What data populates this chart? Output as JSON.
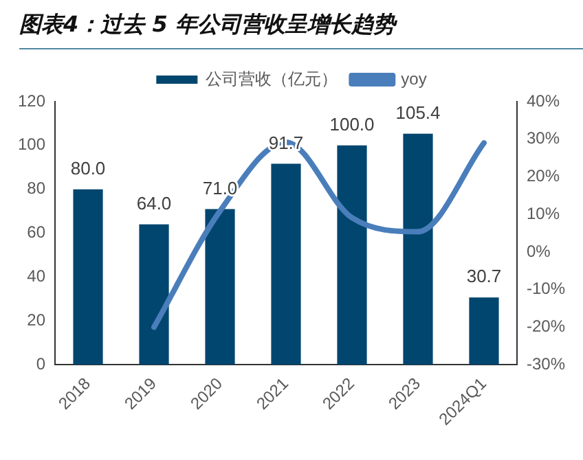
{
  "chart_data": {
    "type": "bar",
    "title": "图表4：过去 5 年公司营收呈增长趋势",
    "categories": [
      "2018",
      "2019",
      "2020",
      "2021",
      "2022",
      "2023",
      "2024Q1"
    ],
    "series": [
      {
        "name": "公司营收（亿元）",
        "color": "#00466e",
        "values": [
          80.0,
          64.0,
          71.0,
          91.7,
          100.0,
          105.4,
          30.7
        ],
        "value_labels": [
          "80.0",
          "64.0",
          "71.0",
          "91.7",
          "100.0",
          "105.4",
          "30.7"
        ]
      },
      {
        "name": "yoy",
        "type": "line",
        "axis": "y2",
        "color": "#4a7ebb",
        "values": [
          null,
          -20,
          10.9,
          29.2,
          9.1,
          5.4,
          29
        ]
      }
    ],
    "ylim": [
      0,
      120
    ],
    "yticks": [
      0,
      20,
      40,
      60,
      80,
      100,
      120
    ],
    "y2lim": [
      -30,
      40
    ],
    "y2ticks": [
      {
        "value": -30,
        "label": "-30%"
      },
      {
        "value": -20,
        "label": "-20%"
      },
      {
        "value": -10,
        "label": "-10%"
      },
      {
        "value": 0,
        "label": "0%"
      },
      {
        "value": 10,
        "label": "10%"
      },
      {
        "value": 20,
        "label": "20%"
      },
      {
        "value": 30,
        "label": "30%"
      },
      {
        "value": 40,
        "label": "40%"
      }
    ],
    "legend": "top",
    "grid": false,
    "marker": "none"
  }
}
